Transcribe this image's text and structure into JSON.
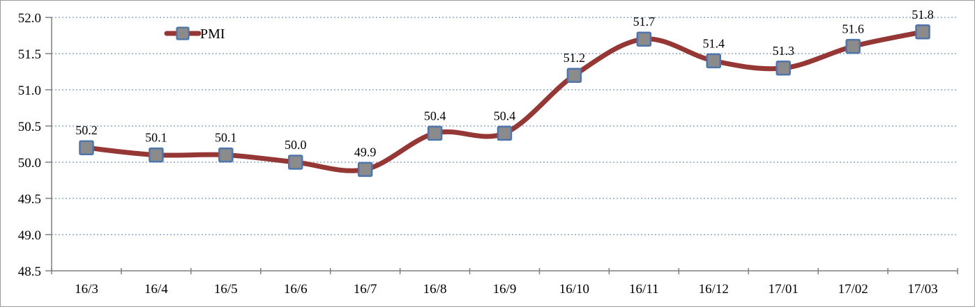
{
  "chart_data": {
    "type": "line",
    "title": "",
    "xlabel": "",
    "ylabel": "",
    "categories": [
      "16/3",
      "16/4",
      "16/5",
      "16/6",
      "16/7",
      "16/8",
      "16/9",
      "16/10",
      "16/11",
      "16/12",
      "17/01",
      "17/02",
      "17/03"
    ],
    "series": [
      {
        "name": "PMI",
        "values": [
          50.2,
          50.1,
          50.1,
          50.0,
          49.9,
          50.4,
          50.4,
          51.2,
          51.7,
          51.4,
          51.3,
          51.6,
          51.8
        ],
        "data_labels": [
          "50.2",
          "50.1",
          "50.1",
          "50.0",
          "49.9",
          "50.4",
          "50.4",
          "51.2",
          "51.7",
          "51.4",
          "51.3",
          "51.6",
          "51.8"
        ],
        "smooth": true,
        "marker": "square"
      }
    ],
    "ylim": [
      48.5,
      52.0
    ],
    "ytick_step": 0.5,
    "ytick_labels": [
      "48.5",
      "49.0",
      "49.5",
      "50.0",
      "50.5",
      "51.0",
      "51.5",
      "52.0"
    ],
    "grid": {
      "horizontal": true,
      "style": "dotted"
    },
    "legend": {
      "entries": [
        "PMI"
      ],
      "position": "top-inside-left"
    },
    "colors": {
      "line": "#953735",
      "marker_fill": "#8b8b8b",
      "marker_border": "#4e76ac",
      "gridline": "#a8bcd8",
      "axis": "#7f7f7f",
      "text": "#000000",
      "background": "#ffffff"
    }
  }
}
